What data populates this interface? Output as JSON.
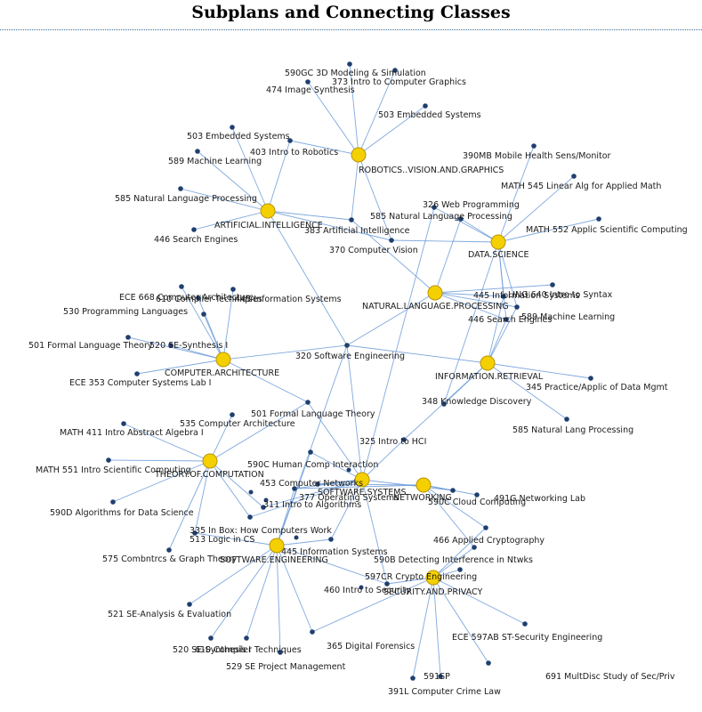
{
  "title": "Subplans and Connecting Classes",
  "style": {
    "edge_color": "#6a9ad8",
    "hub_fill": "#f5d000",
    "hub_stroke": "#b89400",
    "leaf_fill": "#1f3f6f"
  },
  "hubs": [
    {
      "id": "rvg",
      "label": "ROBOTICS..VISION.AND.GRAPHICS"
    },
    {
      "id": "ai",
      "label": "ARTIFICIAL.INTELLIGENCE"
    },
    {
      "id": "ds",
      "label": "DATA.SCIENCE"
    },
    {
      "id": "nlp",
      "label": "NATURAL.LANGUAGE.PROCESSING"
    },
    {
      "id": "ca",
      "label": "COMPUTER.ARCHITECTURE"
    },
    {
      "id": "ir",
      "label": "INFORMATION.RETRIEVAL"
    },
    {
      "id": "toc",
      "label": "THEORY.OF.COMPUTATION"
    },
    {
      "id": "ss",
      "label": "SOFTWARE.SYSTEMS"
    },
    {
      "id": "net",
      "label": "NETWORKING"
    },
    {
      "id": "se",
      "label": "SOFTWARE.ENGINEERING"
    },
    {
      "id": "sp",
      "label": "SECURITY.AND.PRIVACY"
    }
  ],
  "leaves": [
    {
      "id": "l590gc",
      "label": "590GC  3D Modeling & Simulation",
      "hubs": [
        "rvg"
      ]
    },
    {
      "id": "l373",
      "label": "373  Intro to Computer Graphics",
      "hubs": [
        "rvg"
      ]
    },
    {
      "id": "l474",
      "label": "474  Image Synthesis",
      "hubs": [
        "rvg"
      ]
    },
    {
      "id": "l503r",
      "label": "503  Embedded Systems",
      "hubs": [
        "rvg"
      ]
    },
    {
      "id": "l503a",
      "label": "503 Embedded Systems",
      "hubs": [
        "ai"
      ]
    },
    {
      "id": "l403",
      "label": "403  Intro to Robotics",
      "hubs": [
        "ai",
        "rvg"
      ]
    },
    {
      "id": "l589ml",
      "label": "589 Machine Learning",
      "hubs": [
        "ai"
      ]
    },
    {
      "id": "l585a",
      "label": "585 Natural Language Processing",
      "hubs": [
        "ai"
      ]
    },
    {
      "id": "l446a",
      "label": "446  Search Engines",
      "hubs": [
        "ai"
      ]
    },
    {
      "id": "l383",
      "label": "383  Artificial Intelligence",
      "hubs": [
        "ai",
        "rvg",
        "nlp"
      ]
    },
    {
      "id": "l370",
      "label": "370  Computer Vision",
      "hubs": [
        "rvg",
        "ai",
        "ds"
      ]
    },
    {
      "id": "l390mb",
      "label": "390MB  Mobile Health Sens/Monitor",
      "hubs": [
        "ds"
      ]
    },
    {
      "id": "lm545",
      "label": "MATH 545 Linear Alg for Applied Math",
      "hubs": [
        "ds"
      ]
    },
    {
      "id": "lm552",
      "label": "MATH 552 Applic Scientific Computing",
      "hubs": [
        "ds"
      ]
    },
    {
      "id": "l326",
      "label": "326  Web Programming",
      "hubs": [
        "ds",
        "ss"
      ]
    },
    {
      "id": "l585d",
      "label": "585  Natural Language Processing",
      "hubs": [
        "ds",
        "nlp"
      ]
    },
    {
      "id": "l445n",
      "label": "445  Information Systems",
      "hubs": [
        "nlp",
        "ds",
        "ir"
      ]
    },
    {
      "id": "ll640",
      "label": "LING 640  Intro to Syntax",
      "hubs": [
        "nlp"
      ]
    },
    {
      "id": "l589n",
      "label": "589  Machine Learning",
      "hubs": [
        "nlp",
        "ds",
        "ir"
      ]
    },
    {
      "id": "l446n",
      "label": "446 Search Engines",
      "hubs": [
        "nlp",
        "ir",
        "ds"
      ]
    },
    {
      "id": "l320",
      "label": "320  Software Engineering",
      "hubs": [
        "ai",
        "ca",
        "nlp",
        "ir",
        "se",
        "ss"
      ]
    },
    {
      "id": "le668",
      "label": "ECE 668  Computer Architecture",
      "hubs": [
        "ca"
      ]
    },
    {
      "id": "l610",
      "label": "610  Compiler Techniques",
      "hubs": [
        "ca"
      ]
    },
    {
      "id": "l445c",
      "label": "445  Information Systems",
      "hubs": [
        "ca"
      ]
    },
    {
      "id": "l530",
      "label": "530  Programming Languages",
      "hubs": [
        "ca"
      ]
    },
    {
      "id": "l501c",
      "label": "501  Formal Language Theory",
      "hubs": [
        "ca"
      ]
    },
    {
      "id": "l520c",
      "label": "520  SE-Synthesis I",
      "hubs": [
        "ca"
      ]
    },
    {
      "id": "le353",
      "label": "ECE 353  Computer Systems Lab I",
      "hubs": [
        "ca"
      ]
    },
    {
      "id": "l345",
      "label": "345  Practice/Applic of Data Mgmt",
      "hubs": [
        "ir"
      ]
    },
    {
      "id": "l348",
      "label": "348  Knowledge Discovery",
      "hubs": [
        "ir",
        "ds"
      ]
    },
    {
      "id": "l585ir",
      "label": "585 Natural Lang Processing",
      "hubs": [
        "ir"
      ]
    },
    {
      "id": "l501t",
      "label": "501  Formal Language Theory",
      "hubs": [
        "toc"
      ]
    },
    {
      "id": "l535",
      "label": "535  Computer Architecture",
      "hubs": [
        "toc",
        "ca",
        "ss"
      ]
    },
    {
      "id": "lm411",
      "label": "MATH 411  Intro Abstract Algebra I",
      "hubs": [
        "toc"
      ]
    },
    {
      "id": "lm551",
      "label": "MATH 551  Intro Scientific Computing",
      "hubs": [
        "toc"
      ]
    },
    {
      "id": "l590d",
      "label": "590D  Algorithms for Data Science",
      "hubs": [
        "toc"
      ]
    },
    {
      "id": "l325",
      "label": "325  Intro to HCI",
      "hubs": [
        "ss",
        "ir"
      ]
    },
    {
      "id": "l590c",
      "label": "590C  Human Comp Interaction",
      "hubs": [
        "ss",
        "se"
      ]
    },
    {
      "id": "l453",
      "label": "453  Computer Networks",
      "hubs": [
        "ss",
        "net"
      ]
    },
    {
      "id": "l377",
      "label": "377  Operating Systems",
      "hubs": [
        "ss",
        "se",
        "net"
      ]
    },
    {
      "id": "l311",
      "label": "311 Intro to Algorithms",
      "hubs": [
        "toc",
        "ss"
      ]
    },
    {
      "id": "l335",
      "label": "335  In Box: How Computers Work",
      "hubs": [
        "ss",
        "toc"
      ]
    },
    {
      "id": "l513",
      "label": "513  Logic in CS",
      "hubs": [
        "toc",
        "se"
      ]
    },
    {
      "id": "l575",
      "label": "575  Combntrcs & Graph Theory",
      "hubs": [
        "toc"
      ]
    },
    {
      "id": "l445s",
      "label": "445  Information Systems",
      "hubs": [
        "se",
        "ss"
      ]
    },
    {
      "id": "l590cc",
      "label": "590C  Cloud Computing",
      "hubs": [
        "net",
        "ss"
      ]
    },
    {
      "id": "l491g",
      "label": "491G  Networking Lab",
      "hubs": [
        "net"
      ]
    },
    {
      "id": "l466",
      "label": "466  Applied Cryptography",
      "hubs": [
        "sp",
        "net"
      ]
    },
    {
      "id": "l590b",
      "label": "590B  Detecting Interference in Ntwks",
      "hubs": [
        "net",
        "sp"
      ]
    },
    {
      "id": "l597cr",
      "label": "597CR  Crypto Engineering",
      "hubs": [
        "sp"
      ]
    },
    {
      "id": "l460",
      "label": "460  Intro to Security",
      "hubs": [
        "sp",
        "se",
        "ss"
      ]
    },
    {
      "id": "l521",
      "label": "521 SE-Analysis & Evaluation",
      "hubs": [
        "se"
      ]
    },
    {
      "id": "l520s",
      "label": "520 SE-Synthesis I",
      "hubs": [
        "se"
      ]
    },
    {
      "id": "l610s",
      "label": "610 Compiler Techniques",
      "hubs": [
        "se"
      ]
    },
    {
      "id": "l529",
      "label": "529  SE Project Management",
      "hubs": [
        "se"
      ]
    },
    {
      "id": "l365",
      "label": "365  Digital Forensics",
      "hubs": [
        "se",
        "sp"
      ]
    },
    {
      "id": "le597ab",
      "label": "ECE 597AB  ST-Security Engineering",
      "hubs": [
        "sp"
      ]
    },
    {
      "id": "l691",
      "label": "691 MultDisc Study of Sec/Priv",
      "hubs": [
        "sp"
      ]
    },
    {
      "id": "l591sp",
      "label": "591SP",
      "hubs": [
        "sp"
      ]
    },
    {
      "id": "l391l",
      "label": "391L  Computer Crime Law",
      "hubs": [
        "sp"
      ]
    }
  ]
}
